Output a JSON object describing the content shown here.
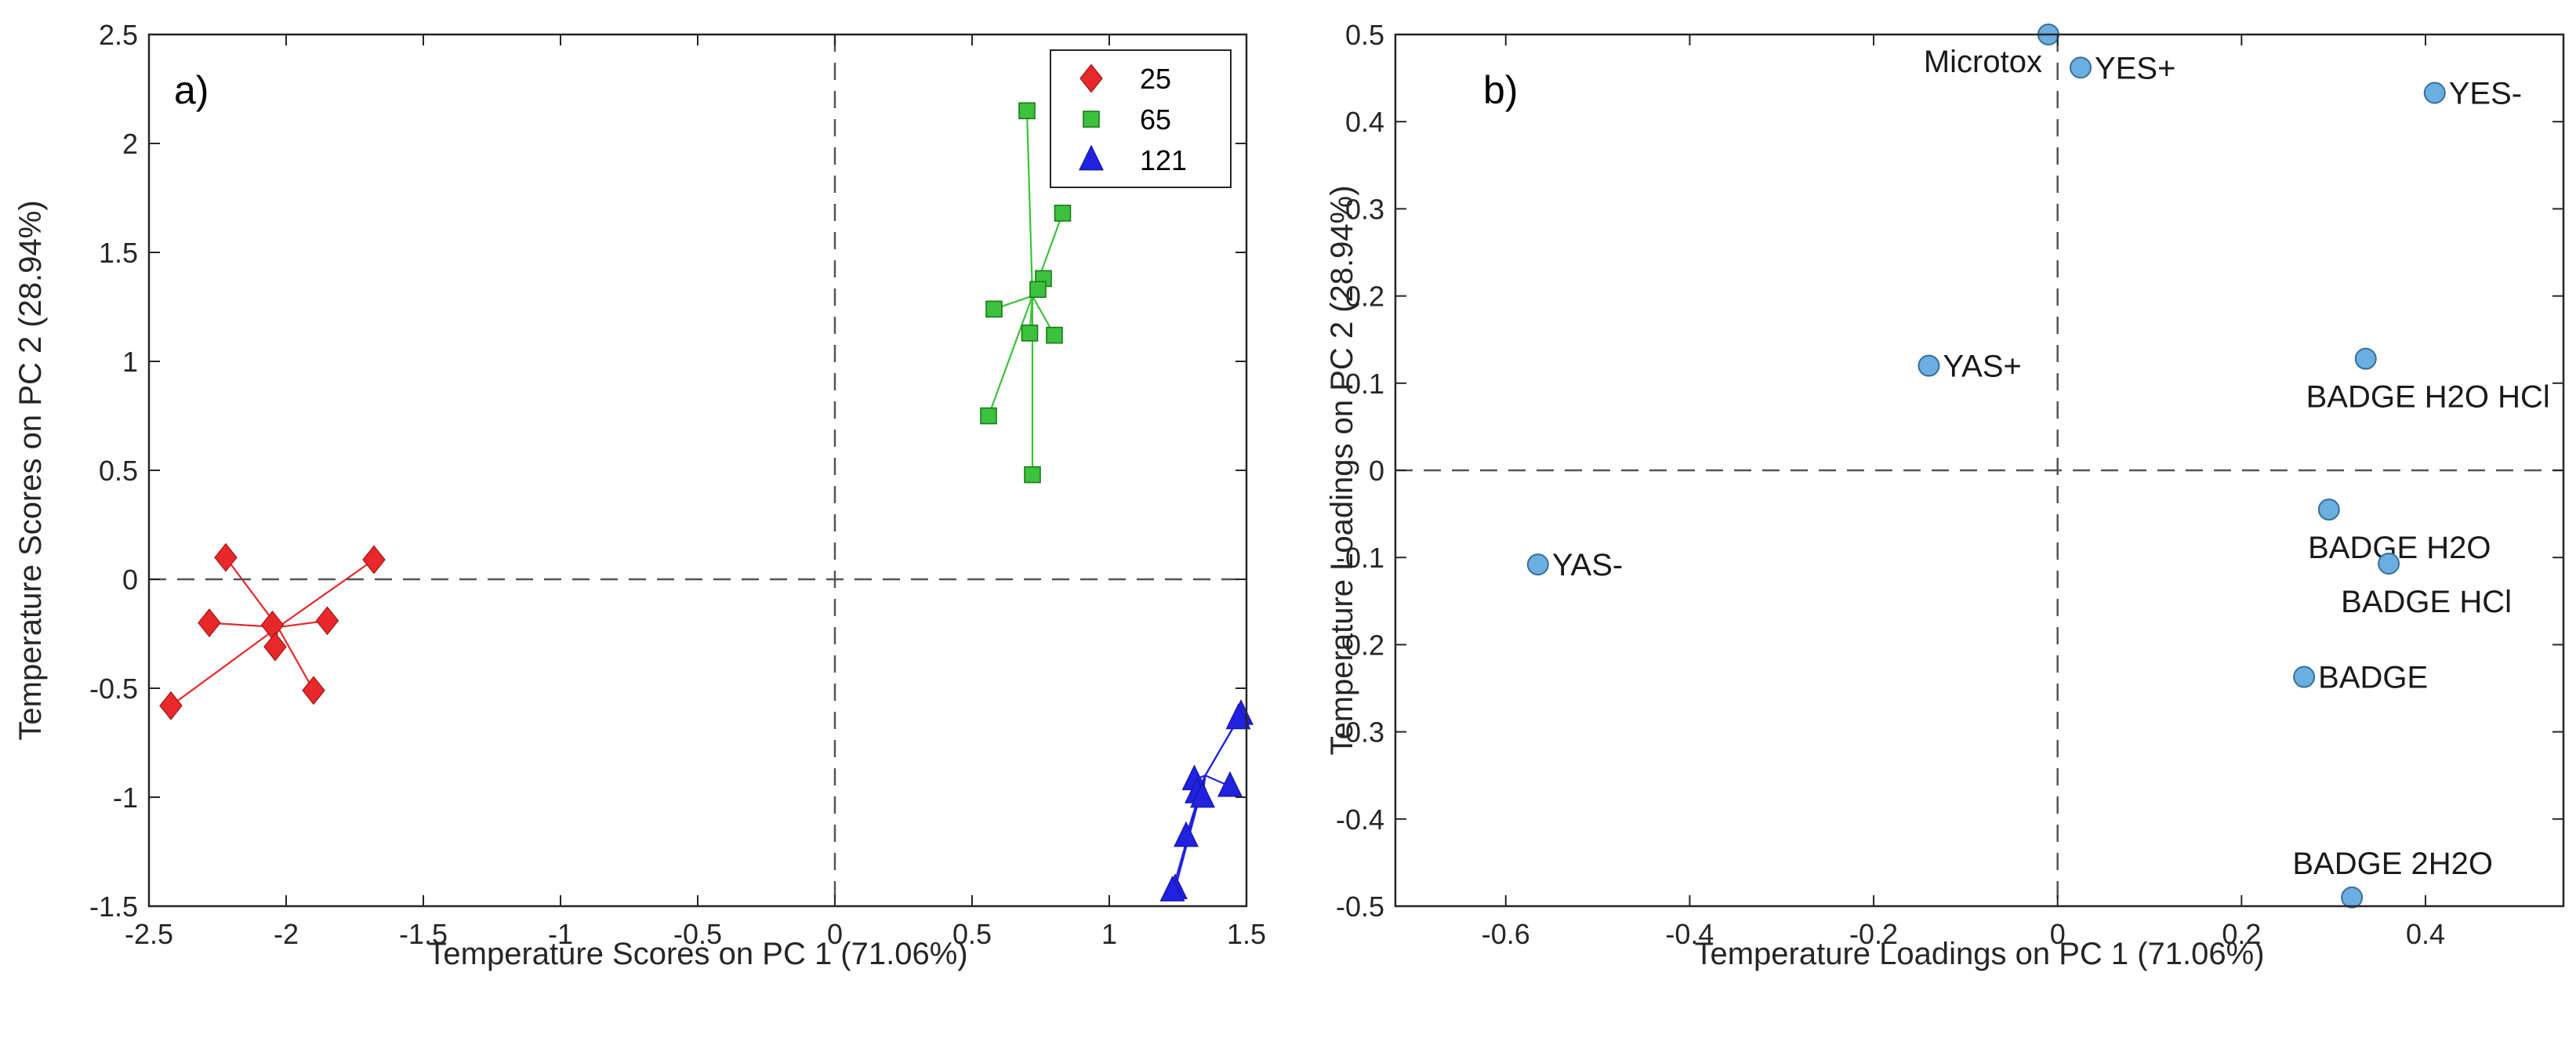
{
  "chart_data": [
    {
      "type": "scatter",
      "panel_label": "a)",
      "xlabel": "Temperature Scores on PC 1 (71.06%)",
      "ylabel": "Temperature Scores on PC 2 (28.94%)",
      "xlim": [
        -2.5,
        1.5
      ],
      "ylim": [
        -1.5,
        2.5
      ],
      "xticks": [
        "-2.5",
        "-2",
        "-1.5",
        "-1",
        "-0.5",
        "0",
        "0.5",
        "1",
        "1.5"
      ],
      "yticks": [
        "-1.5",
        "-1",
        "-0.5",
        "0",
        "0.5",
        "1",
        "1.5",
        "2",
        "2.5"
      ],
      "legend_position": "top-right",
      "series": [
        {
          "name": "25",
          "color": "#e8282b",
          "marker": "diamond",
          "centroid": [
            -2.03,
            -0.22
          ],
          "points": [
            [
              -2.22,
              0.1
            ],
            [
              -2.28,
              -0.2
            ],
            [
              -2.05,
              -0.21
            ],
            [
              -2.04,
              -0.31
            ],
            [
              -1.85,
              -0.19
            ],
            [
              -1.9,
              -0.51
            ],
            [
              -2.42,
              -0.58
            ],
            [
              -1.68,
              0.09
            ]
          ]
        },
        {
          "name": "65",
          "color": "#3cc23c",
          "marker": "square",
          "centroid": [
            0.72,
            1.3
          ],
          "points": [
            [
              0.7,
              2.15
            ],
            [
              0.83,
              1.68
            ],
            [
              0.76,
              1.38
            ],
            [
              0.74,
              1.33
            ],
            [
              0.58,
              1.24
            ],
            [
              0.71,
              1.13
            ],
            [
              0.8,
              1.12
            ],
            [
              0.56,
              0.75
            ],
            [
              0.72,
              0.48
            ]
          ]
        },
        {
          "name": "121",
          "color": "#2121e0",
          "marker": "triangle",
          "centroid": [
            1.35,
            -0.9
          ],
          "points": [
            [
              1.48,
              -0.62
            ],
            [
              1.47,
              -0.64
            ],
            [
              1.31,
              -0.92
            ],
            [
              1.44,
              -0.95
            ],
            [
              1.32,
              -0.98
            ],
            [
              1.34,
              -1.0
            ],
            [
              1.28,
              -1.18
            ],
            [
              1.24,
              -1.42
            ],
            [
              1.23,
              -1.43
            ]
          ]
        }
      ]
    },
    {
      "type": "scatter",
      "panel_label": "b)",
      "xlabel": "Temperature Loadings on PC 1 (71.06%)",
      "ylabel": "Temperature Loadings on PC 2 (28.94%)",
      "xlim": [
        -0.72,
        0.55
      ],
      "ylim": [
        -0.5,
        0.5
      ],
      "xticks": [
        "-0.6",
        "-0.4",
        "-0.2",
        "0",
        "0.2",
        "0.4"
      ],
      "xtick_values": [
        -0.6,
        -0.4,
        -0.2,
        0,
        0.2,
        0.4
      ],
      "yticks": [
        "-0.5",
        "-0.4",
        "-0.3",
        "-0.2",
        "-0.1",
        "0",
        "0.1",
        "0.2",
        "0.3",
        "0.4",
        "0.5"
      ],
      "marker_color": "#6aaee2",
      "points": [
        {
          "label": "Microtox",
          "x": -0.01,
          "y": 0.5,
          "label_pos": "left-below"
        },
        {
          "label": "YES+",
          "x": 0.025,
          "y": 0.462,
          "label_pos": "right"
        },
        {
          "label": "YES-",
          "x": 0.41,
          "y": 0.433,
          "label_pos": "right"
        },
        {
          "label": "YAS+",
          "x": -0.14,
          "y": 0.12,
          "label_pos": "right"
        },
        {
          "label": "BADGE H2O HCl",
          "x": 0.335,
          "y": 0.128,
          "label_pos": "below-left"
        },
        {
          "label": "YAS-",
          "x": -0.565,
          "y": -0.108,
          "label_pos": "right"
        },
        {
          "label": "BADGE H2O",
          "x": 0.295,
          "y": -0.045,
          "label_pos": "below"
        },
        {
          "label": "BADGE HCl",
          "x": 0.36,
          "y": -0.107,
          "label_pos": "below-center"
        },
        {
          "label": "BADGE",
          "x": 0.268,
          "y": -0.237,
          "label_pos": "right"
        },
        {
          "label": "BADGE 2H2O",
          "x": 0.32,
          "y": -0.49,
          "label_pos": "above"
        }
      ]
    }
  ]
}
